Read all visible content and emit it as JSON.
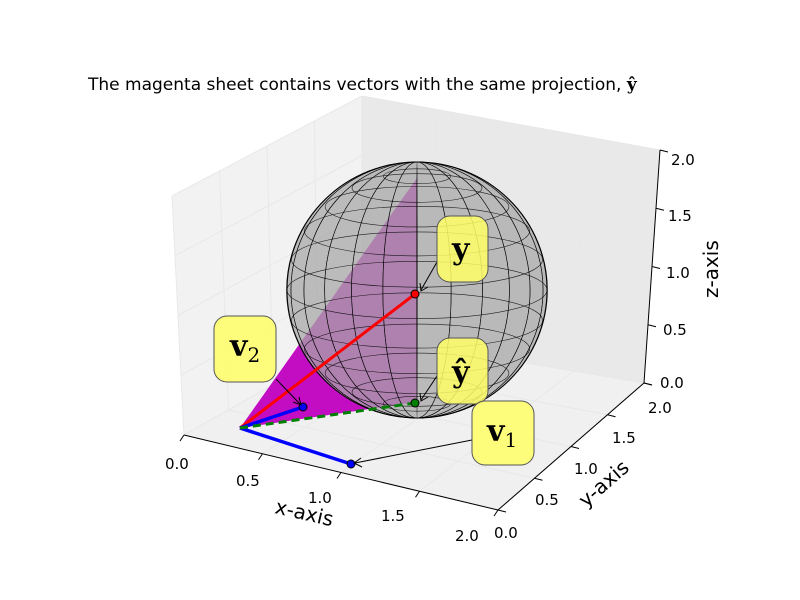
{
  "chart_data": {
    "type": "3d-vector",
    "title": "The magenta sheet contains vectors with the same projection, ",
    "title_hat_symbol": "ŷ",
    "xlabel": "x-axis",
    "ylabel": "y-axis",
    "zlabel": "z-axis",
    "xlim": [
      0.0,
      2.0
    ],
    "ylim": [
      0.0,
      2.0
    ],
    "zlim": [
      0.0,
      2.0
    ],
    "x_ticks": [
      "0.0",
      "0.5",
      "1.0",
      "1.5",
      "2.0"
    ],
    "y_ticks": [
      "0.0",
      "0.5",
      "1.0",
      "1.5",
      "2.0"
    ],
    "z_ticks": [
      "0.0",
      "0.5",
      "1.0",
      "1.5",
      "2.0"
    ],
    "sphere": {
      "center": [
        1.0,
        1.0,
        1.0
      ],
      "radius": 1.0,
      "color": "#999999"
    },
    "vectors": [
      {
        "label": "v",
        "subscript": "2",
        "from": [
          0.5,
          0.0,
          0.0
        ],
        "to": [
          0.5,
          1.0,
          0.0
        ],
        "color": "#0000ff"
      },
      {
        "label": "v",
        "subscript": "1",
        "from": [
          0.5,
          0.0,
          0.0
        ],
        "to": [
          1.0,
          0.0,
          0.0
        ],
        "color": "#0000ff"
      },
      {
        "label": "y",
        "from": [
          0.5,
          0.0,
          0.0
        ],
        "to": [
          1.0,
          1.0,
          1.0
        ],
        "color": "#ff0000"
      },
      {
        "label": "ŷ",
        "from": [
          0.5,
          0.0,
          0.0
        ],
        "to": [
          1.0,
          1.0,
          0.0
        ],
        "color": "#008000",
        "dashed": true
      }
    ],
    "sheet_color": "#c000c0",
    "callout_color": "#ffff66"
  }
}
